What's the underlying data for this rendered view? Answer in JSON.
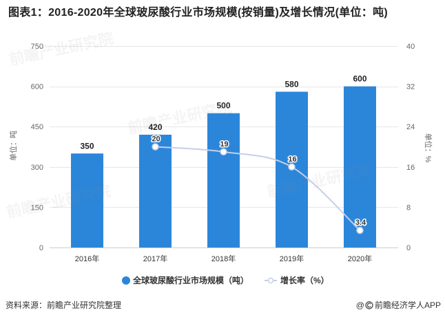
{
  "chart_data": {
    "type": "bar",
    "title": "图表1：2016-2020年全球玻尿酸行业市场规模(按销量)及增长情况(单位：吨)",
    "categories": [
      "2016年",
      "2017年",
      "2018年",
      "2019年",
      "2020年"
    ],
    "series": [
      {
        "name": "全球玻尿酸行业市场规模（吨）",
        "type": "bar",
        "y_axis": "left",
        "values": [
          350,
          420,
          500,
          580,
          600
        ]
      },
      {
        "name": "增长率（%）",
        "type": "line",
        "y_axis": "right",
        "smooth": true,
        "values": [
          null,
          20,
          19,
          16,
          3.4
        ]
      }
    ],
    "data_labels": true,
    "y_left": {
      "label": "单位：吨",
      "range": [
        0,
        750
      ],
      "ticks": [
        0,
        150,
        300,
        450,
        600,
        750
      ]
    },
    "y_right": {
      "label": "单位：%",
      "range": [
        0,
        40
      ],
      "ticks": [
        0,
        8,
        16,
        24,
        32,
        40
      ]
    },
    "grid": true,
    "legend": "bottom-center"
  },
  "source": "资料来源：前瞻产业研究院整理",
  "credit": {
    "prefix": "@",
    "logo_icon": "qianzhan-logo-icon",
    "text": "前瞻经济学人APP"
  },
  "watermark": "前瞻产业研究院",
  "colors": {
    "bar": "#2b86da",
    "line": "#c5cee8",
    "marker_fill": "#ffffff",
    "grid": "#e6e6e6",
    "baseline": "#cccccc",
    "title": "#222222",
    "text": "#333333",
    "tick": "#666666"
  }
}
